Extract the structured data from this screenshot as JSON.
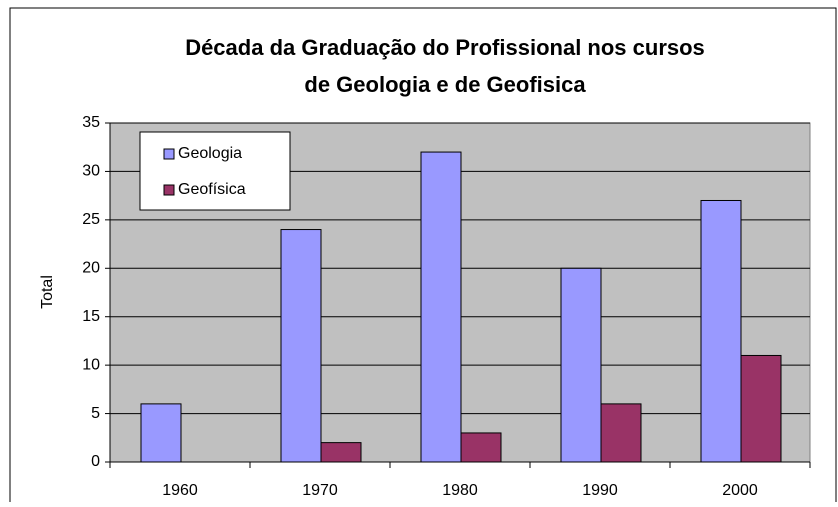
{
  "chart_data": {
    "type": "bar",
    "title": [
      "Década da Graduação do Profissional nos cursos",
      "de Geologia e de Geofisica"
    ],
    "y_label": "Total",
    "categories": [
      "1960",
      "1970",
      "1980",
      "1990",
      "2000"
    ],
    "series": [
      {
        "name": "Geologia",
        "color": "#9999ff",
        "values": [
          6,
          24,
          32,
          20,
          27
        ]
      },
      {
        "name": "Geofísica",
        "color": "#993366",
        "values": [
          0,
          2,
          3,
          6,
          11
        ]
      }
    ],
    "ylim": [
      0,
      35
    ],
    "yticks": [
      0,
      5,
      10,
      15,
      20,
      25,
      30,
      35
    ],
    "grid": true,
    "legend": "top-left"
  }
}
